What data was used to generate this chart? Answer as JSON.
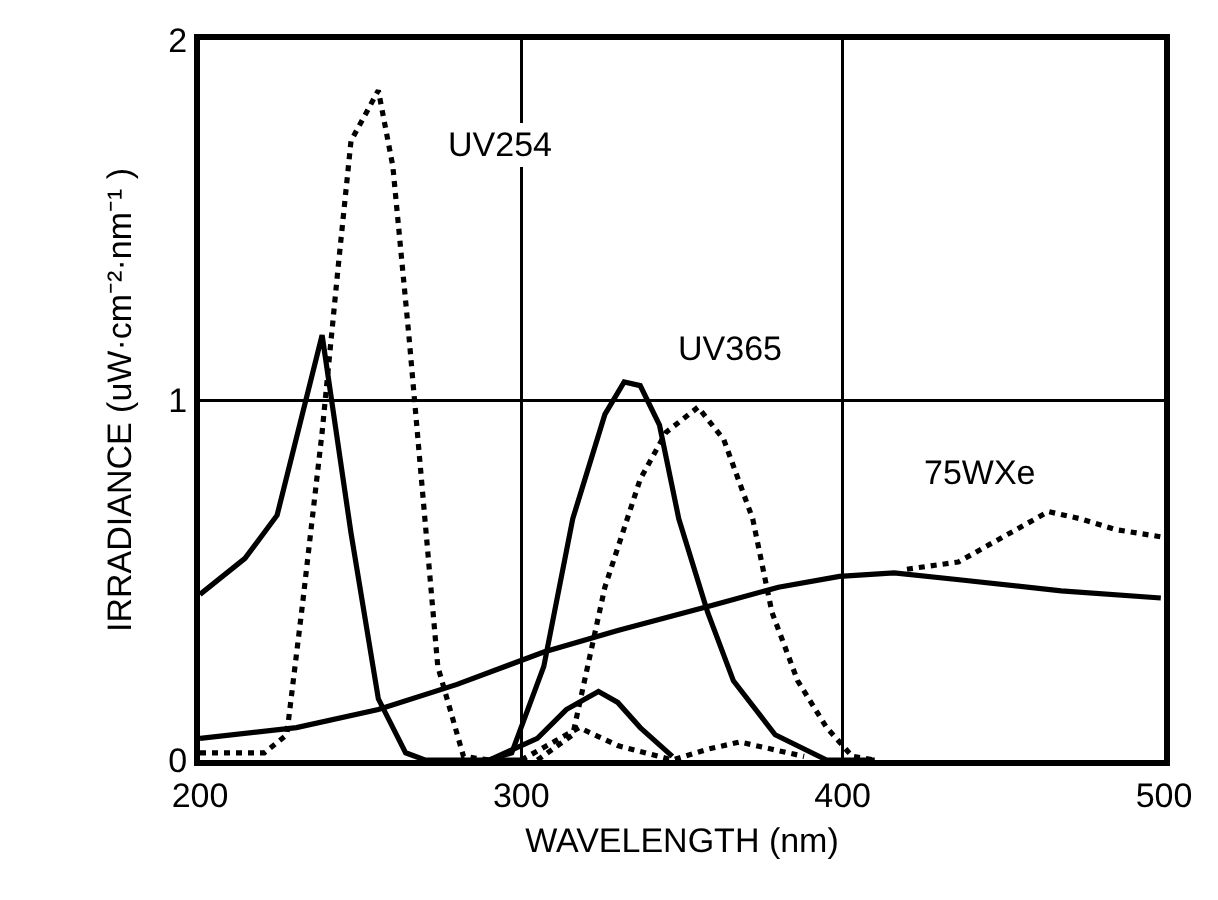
{
  "chart_data": {
    "type": "line",
    "xlabel": "WAVELENGTH (nm)",
    "ylabel": "IRRADIANCE (uW·cm⁻²·nm⁻¹ )",
    "xlim": [
      200,
      500
    ],
    "ylim": [
      0,
      2
    ],
    "xticks": [
      200,
      300,
      400,
      500
    ],
    "yticks": [
      0,
      1,
      2
    ],
    "grid": true,
    "marker": "none",
    "series": [
      {
        "color": "#000000",
        "line_style": "solid",
        "x": [
          200,
          214,
          224,
          231,
          238,
          247,
          255.5,
          264,
          270,
          300
        ],
        "values": [
          0.46,
          0.56,
          0.68,
          0.93,
          1.18,
          0.63,
          0.17,
          0.02,
          0,
          0
        ]
      },
      {
        "color": "#000000",
        "line_style": "dotted",
        "x": [
          200,
          220,
          227,
          232,
          238,
          243,
          247,
          255.5,
          260,
          265,
          269.5,
          274,
          282,
          290
        ],
        "values": [
          0.02,
          0.02,
          0.07,
          0.44,
          0.91,
          1.37,
          1.72,
          1.86,
          1.65,
          1.18,
          0.72,
          0.26,
          0.01,
          0
        ]
      },
      {
        "color": "#000000",
        "line_style": "solid",
        "x": [
          200,
          230,
          255.5,
          280,
          307,
          330,
          359.5,
          380,
          399,
          416,
          437,
          468,
          499
        ],
        "values": [
          0.06,
          0.09,
          0.14,
          0.21,
          0.3,
          0.36,
          0.43,
          0.48,
          0.51,
          0.52,
          0.5,
          0.47,
          0.45
        ]
      },
      {
        "color": "#000000",
        "line_style": "dotted",
        "x": [
          420,
          436,
          450,
          464,
          474,
          485,
          499
        ],
        "values": [
          0.53,
          0.55,
          0.62,
          0.69,
          0.67,
          0.64,
          0.62
        ]
      },
      {
        "color": "#000000",
        "line_style": "solid",
        "x": [
          290,
          297,
          307,
          316,
          326,
          332,
          337,
          343,
          349,
          358,
          366,
          379,
          395,
          410
        ],
        "values": [
          0,
          0.02,
          0.26,
          0.67,
          0.96,
          1.05,
          1.04,
          0.93,
          0.67,
          0.41,
          0.22,
          0.07,
          0,
          0
        ]
      },
      {
        "color": "#000000",
        "line_style": "dotted",
        "x": [
          305,
          316,
          326,
          337,
          345,
          355,
          363,
          372,
          378,
          386,
          395,
          403,
          410
        ],
        "values": [
          0,
          0.07,
          0.48,
          0.78,
          0.91,
          0.98,
          0.89,
          0.67,
          0.41,
          0.22,
          0.09,
          0.01,
          0
        ]
      },
      {
        "color": "#000000",
        "line_style": "solid",
        "x": [
          290,
          305,
          314,
          324,
          330,
          337,
          347
        ],
        "values": [
          0,
          0.06,
          0.14,
          0.19,
          0.16,
          0.09,
          0.01
        ]
      },
      {
        "color": "#000000",
        "line_style": "dotted",
        "x": [
          300,
          310,
          318,
          330,
          347,
          358,
          368,
          378,
          388
        ],
        "values": [
          0,
          0.05,
          0.09,
          0.04,
          0,
          0.03,
          0.05,
          0.03,
          0.01
        ]
      }
    ],
    "annotations": [
      "UV254",
      "UV365",
      "75WXe"
    ]
  }
}
